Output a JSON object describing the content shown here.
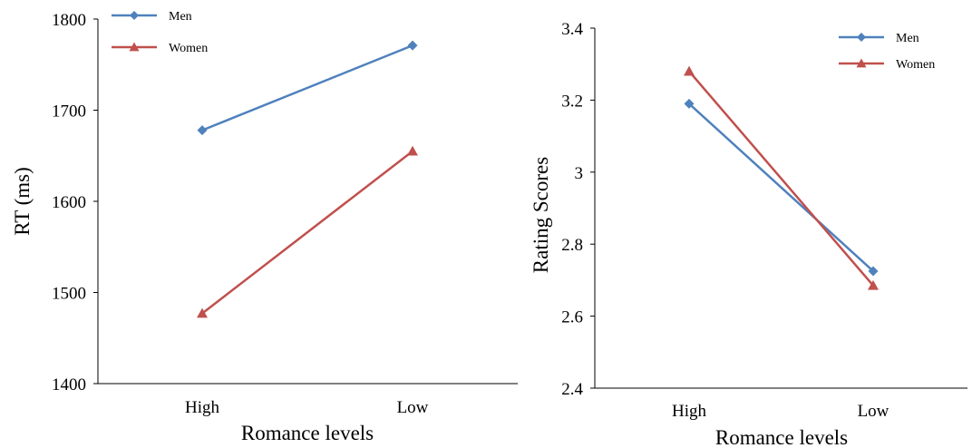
{
  "chart_data": [
    {
      "type": "line",
      "categories": [
        "High",
        "Low"
      ],
      "ylabel": "RT (ms)",
      "xlabel": "Romance levels",
      "ylim": [
        1400,
        1800
      ],
      "yticks": [
        "1400",
        "1500",
        "1600",
        "1700",
        "1800"
      ],
      "legend_position": "top-left",
      "grid": false,
      "series": [
        {
          "name": "Men",
          "values": [
            1678,
            1771
          ],
          "color": "#4F81BD",
          "marker": "diamond"
        },
        {
          "name": "Women",
          "values": [
            1477,
            1655
          ],
          "color": "#C0504D",
          "marker": "triangle"
        }
      ]
    },
    {
      "type": "line",
      "categories": [
        "High",
        "Low"
      ],
      "ylabel": "Rating Scores",
      "xlabel": "Romance levels",
      "ylim": [
        2.4,
        3.4
      ],
      "yticks": [
        "2.4",
        "2.6",
        "2.8",
        "3",
        "3.2",
        "3.4"
      ],
      "legend_position": "top-right",
      "grid": false,
      "series": [
        {
          "name": "Men",
          "values": [
            3.19,
            2.725
          ],
          "color": "#4F81BD",
          "marker": "diamond"
        },
        {
          "name": "Women",
          "values": [
            3.28,
            2.685
          ],
          "color": "#C0504D",
          "marker": "triangle"
        }
      ]
    }
  ]
}
